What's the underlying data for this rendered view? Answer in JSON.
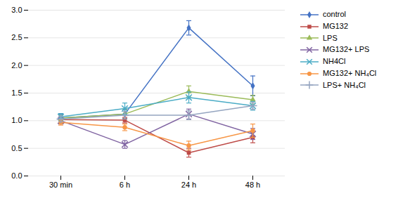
{
  "chart_data": {
    "type": "line",
    "categories": [
      "30 min",
      "6 h",
      "24 h",
      "48 h"
    ],
    "series": [
      {
        "name": "control",
        "color": "#4472C4",
        "marker": "diamond",
        "values": [
          1.05,
          1.12,
          2.68,
          1.63
        ],
        "errors": [
          0.07,
          0.08,
          0.13,
          0.18
        ]
      },
      {
        "name": "MG132",
        "color": "#BE4B48",
        "marker": "square",
        "values": [
          1.02,
          1.01,
          0.42,
          0.7
        ],
        "errors": [
          0.06,
          0.05,
          0.08,
          0.1
        ]
      },
      {
        "name": "LPS",
        "color": "#9BBB59",
        "marker": "triangle",
        "values": [
          1.05,
          1.12,
          1.53,
          1.38
        ],
        "errors": [
          0.05,
          0.09,
          0.1,
          0.08
        ]
      },
      {
        "name": "MG132+ LPS",
        "color": "#8064A2",
        "marker": "x",
        "values": [
          1.0,
          0.57,
          1.12,
          0.76
        ],
        "errors": [
          0.06,
          0.07,
          0.09,
          0.1
        ]
      },
      {
        "name": "NH4Cl",
        "color": "#4BACC6",
        "marker": "x",
        "values": [
          1.07,
          1.22,
          1.42,
          1.27
        ],
        "errors": [
          0.06,
          0.1,
          0.1,
          0.08
        ]
      },
      {
        "name": "MG132+ NH₄Cl",
        "color": "#F79646",
        "marker": "circle",
        "values": [
          0.97,
          0.88,
          0.55,
          0.82
        ],
        "errors": [
          0.05,
          0.06,
          0.08,
          0.12
        ]
      },
      {
        "name": "LPS+ NH₄Cl",
        "color": "#95A5C0",
        "marker": "plus",
        "values": [
          1.03,
          1.1,
          1.1,
          1.27
        ],
        "errors": [
          0.05,
          0.07,
          0.08,
          0.06
        ]
      }
    ],
    "ylim": [
      0,
      3.0
    ],
    "yticks": [
      0,
      0.5,
      1.0,
      1.5,
      2.0,
      2.5,
      3.0
    ],
    "grid": true,
    "legend": "right"
  }
}
